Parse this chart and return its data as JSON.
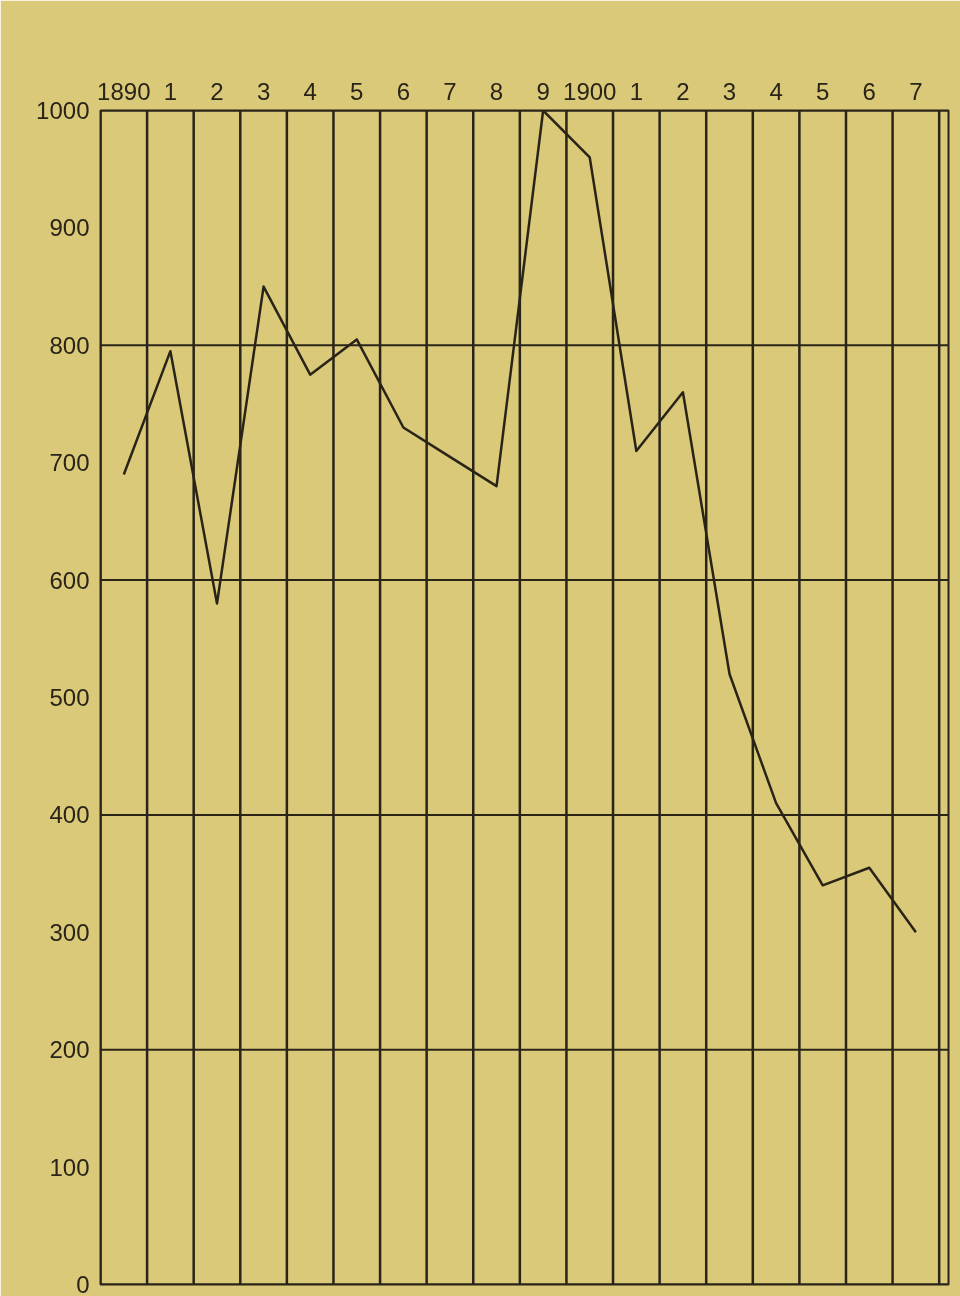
{
  "chart_data": {
    "type": "line",
    "categories": [
      "1890",
      "1",
      "2",
      "3",
      "4",
      "5",
      "6",
      "7",
      "8",
      "9",
      "1900",
      "1",
      "2",
      "3",
      "4",
      "5",
      "6",
      "7"
    ],
    "series": [
      {
        "color": "#2a2418",
        "values": [
          690,
          795,
          580,
          850,
          775,
          805,
          730,
          705,
          680,
          1000,
          960,
          710,
          760,
          520,
          410,
          340,
          355,
          300
        ]
      }
    ],
    "ylim": [
      0,
      1000
    ],
    "yticks": [
      0,
      100,
      200,
      300,
      400,
      500,
      600,
      700,
      800,
      900,
      1000
    ],
    "grid": true
  }
}
